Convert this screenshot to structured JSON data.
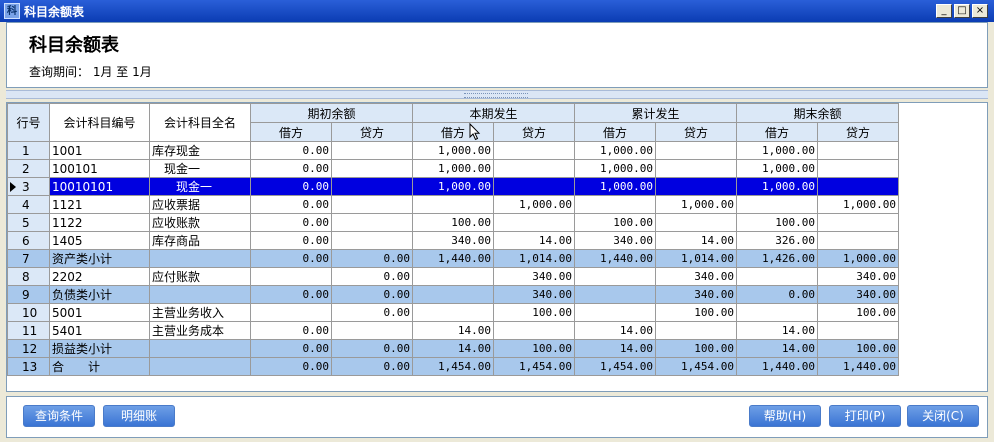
{
  "window": {
    "title": "科目余额表",
    "icon": "app-window-icon"
  },
  "report": {
    "title": "科目余额表",
    "period": "查询期间： 1月 至 1月"
  },
  "columns": {
    "row_no": "行号",
    "code": "会计科目编号",
    "name": "会计科目全名",
    "groups": [
      "期初余额",
      "本期发生",
      "累计发生",
      "期末余额"
    ],
    "debit": "借方",
    "credit": "贷方"
  },
  "rows": [
    {
      "n": "1",
      "code": "1001",
      "name": "库存现金",
      "indent": 0,
      "type": "normal",
      "v": [
        "0.00",
        "",
        "1,000.00",
        "",
        "1,000.00",
        "",
        "1,000.00",
        ""
      ]
    },
    {
      "n": "2",
      "code": "100101",
      "name": "现金一",
      "indent": 1,
      "type": "normal",
      "v": [
        "0.00",
        "",
        "1,000.00",
        "",
        "1,000.00",
        "",
        "1,000.00",
        ""
      ]
    },
    {
      "n": "3",
      "code": "10010101",
      "name": "现金一",
      "indent": 2,
      "type": "selected",
      "v": [
        "0.00",
        "",
        "1,000.00",
        "",
        "1,000.00",
        "",
        "1,000.00",
        ""
      ]
    },
    {
      "n": "4",
      "code": "1121",
      "name": "应收票据",
      "indent": 0,
      "type": "normal",
      "v": [
        "0.00",
        "",
        "",
        "1,000.00",
        "",
        "1,000.00",
        "",
        "1,000.00"
      ]
    },
    {
      "n": "5",
      "code": "1122",
      "name": "应收账款",
      "indent": 0,
      "type": "normal",
      "v": [
        "0.00",
        "",
        "100.00",
        "",
        "100.00",
        "",
        "100.00",
        ""
      ]
    },
    {
      "n": "6",
      "code": "1405",
      "name": "库存商品",
      "indent": 0,
      "type": "normal",
      "v": [
        "0.00",
        "",
        "340.00",
        "14.00",
        "340.00",
        "14.00",
        "326.00",
        ""
      ]
    },
    {
      "n": "7",
      "code": "资产类小计",
      "name": "",
      "indent": 0,
      "type": "subtotal",
      "v": [
        "0.00",
        "0.00",
        "1,440.00",
        "1,014.00",
        "1,440.00",
        "1,014.00",
        "1,426.00",
        "1,000.00"
      ]
    },
    {
      "n": "8",
      "code": "2202",
      "name": "应付账款",
      "indent": 0,
      "type": "normal",
      "v": [
        "",
        "0.00",
        "",
        "340.00",
        "",
        "340.00",
        "",
        "340.00"
      ]
    },
    {
      "n": "9",
      "code": "负债类小计",
      "name": "",
      "indent": 0,
      "type": "subtotal",
      "v": [
        "0.00",
        "0.00",
        "",
        "340.00",
        "",
        "340.00",
        "0.00",
        "340.00"
      ]
    },
    {
      "n": "10",
      "code": "5001",
      "name": "主营业务收入",
      "indent": 0,
      "type": "normal",
      "v": [
        "",
        "0.00",
        "",
        "100.00",
        "",
        "100.00",
        "",
        "100.00"
      ]
    },
    {
      "n": "11",
      "code": "5401",
      "name": "主营业务成本",
      "indent": 0,
      "type": "normal",
      "v": [
        "0.00",
        "",
        "14.00",
        "",
        "14.00",
        "",
        "14.00",
        ""
      ]
    },
    {
      "n": "12",
      "code": "损益类小计",
      "name": "",
      "indent": 0,
      "type": "subtotal",
      "v": [
        "0.00",
        "0.00",
        "14.00",
        "100.00",
        "14.00",
        "100.00",
        "14.00",
        "100.00"
      ]
    },
    {
      "n": "13",
      "code": "合　　计",
      "name": "",
      "indent": 0,
      "type": "subtotal",
      "v": [
        "0.00",
        "0.00",
        "1,454.00",
        "1,454.00",
        "1,454.00",
        "1,454.00",
        "1,440.00",
        "1,440.00"
      ]
    }
  ],
  "buttons": {
    "query": "查询条件",
    "detail": "明细账",
    "help": "帮助(H)",
    "print": "打印(P)",
    "close": "关闭(C)"
  },
  "colors": {
    "title_bar": "#0b3cb3",
    "selected_row": "#0000e0",
    "subtotal_row": "#a8c8ec",
    "header_bg": "#dbe8f7",
    "button": "#3a74d4"
  }
}
